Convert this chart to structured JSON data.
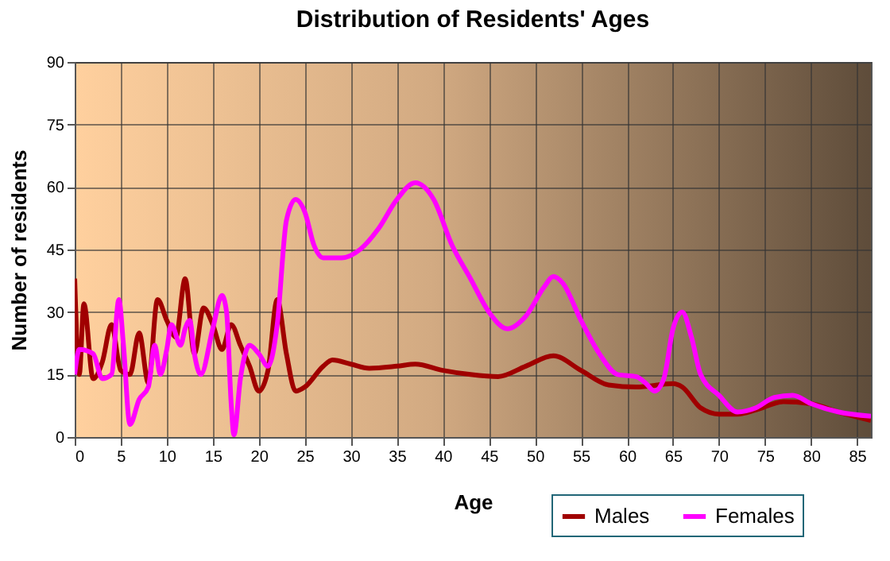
{
  "chart_data": {
    "type": "line",
    "title": "Distribution of Residents' Ages",
    "xlabel": "Age",
    "ylabel": "Number of residents",
    "xlim": [
      0,
      86.5
    ],
    "xticks": [
      0,
      5,
      10,
      15,
      20,
      25,
      30,
      35,
      40,
      45,
      50,
      55,
      60,
      65,
      70,
      75,
      80,
      85
    ],
    "ylim": [
      0,
      90
    ],
    "yticks": [
      0,
      15,
      30,
      45,
      60,
      75,
      90
    ],
    "grid": true,
    "legend": "bottom right",
    "series": [
      {
        "name": "Males",
        "color": "#a00000",
        "x": [
          0,
          0.5,
          1,
          2,
          3,
          4,
          5,
          6,
          7,
          8,
          9,
          10,
          11,
          12,
          13,
          14,
          15,
          16,
          17,
          18,
          19,
          20,
          21,
          22,
          23,
          24,
          25,
          27,
          28,
          30,
          32,
          35,
          37,
          40,
          43,
          46,
          49,
          52,
          55,
          58,
          61,
          65,
          66,
          68,
          70,
          72,
          74,
          77,
          80,
          83,
          86.5
        ],
        "values": [
          38,
          15,
          32,
          14,
          18,
          27,
          16,
          15,
          25,
          13,
          33,
          28,
          24,
          38,
          20,
          31,
          27,
          21,
          27,
          22,
          17,
          11,
          16,
          33,
          20,
          11,
          12,
          17,
          18.5,
          17.5,
          16.5,
          17,
          17.5,
          16,
          15,
          14.5,
          17,
          19.5,
          16,
          12.5,
          12,
          12.8,
          12,
          7,
          5.5,
          5.5,
          6.5,
          8.5,
          8,
          6,
          4
        ]
      },
      {
        "name": "Females",
        "color": "#ff00ff",
        "x": [
          0,
          0.5,
          2,
          3,
          4,
          4.8,
          5.3,
          6,
          7,
          8,
          8.7,
          9.3,
          10,
          10.5,
          11.5,
          12,
          12.5,
          13,
          13.7,
          15,
          16,
          16.5,
          17,
          17.3,
          18,
          19,
          20,
          21,
          22,
          23,
          24,
          25,
          26,
          27,
          29,
          31,
          33,
          35,
          37,
          39,
          41,
          43,
          45,
          47,
          49,
          51,
          52,
          53,
          55,
          57,
          59,
          61,
          62,
          63,
          64,
          65,
          66,
          67,
          68,
          70,
          72,
          74,
          76,
          78,
          80,
          83,
          86.5
        ],
        "values": [
          15,
          21,
          20,
          14,
          15,
          33,
          22,
          3,
          9,
          12,
          22,
          15,
          21,
          27,
          22,
          26,
          28,
          20,
          15,
          26,
          34,
          30,
          8,
          0.5,
          14,
          22,
          20,
          17,
          27,
          52,
          57,
          54,
          46,
          43,
          43,
          45,
          50,
          57,
          61,
          57,
          46,
          38,
          30,
          26,
          29,
          36,
          38.5,
          37,
          28,
          20,
          15,
          14.5,
          13,
          11,
          14,
          26,
          30,
          24,
          15,
          10,
          6,
          7,
          9.5,
          10,
          8,
          6,
          5
        ]
      }
    ]
  }
}
